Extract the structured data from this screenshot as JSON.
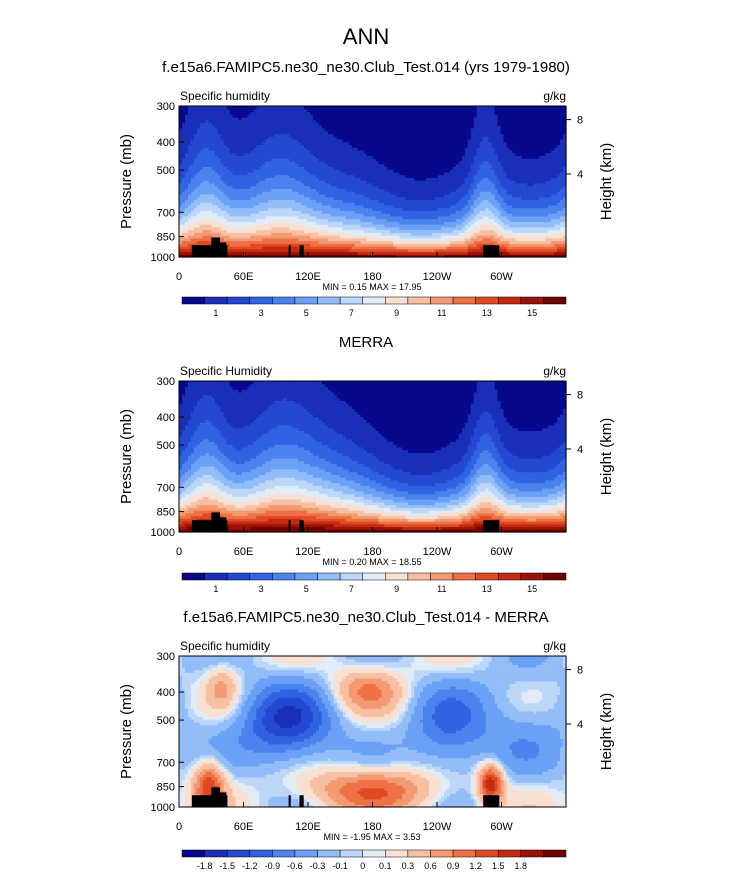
{
  "page_title": "ANN",
  "chart_data": [
    {
      "type": "heatmap",
      "title": "f.e15a6.FAMIPC5.ne30_ne30.Club_Test.014 (yrs 1979-1980)",
      "left_string": "Specific humidity",
      "right_string": "g/kg",
      "ylabel": "Pressure (mb)",
      "ylabel_right": "Height (km)",
      "x_ticks": [
        "0",
        "60E",
        "120E",
        "180",
        "120W",
        "60W"
      ],
      "y_ticks": [
        "300",
        "400",
        "500",
        "700",
        "850",
        "1000"
      ],
      "y_right_ticks": [
        "8",
        "4"
      ],
      "y_scale": "log",
      "ylim": [
        1000,
        300
      ],
      "min_label": "MIN =   0.15  MAX =  17.95",
      "min": 0.15,
      "max": 17.95,
      "colorbar_labels": [
        "1",
        "3",
        "5",
        "7",
        "9",
        "11",
        "13",
        "15"
      ],
      "colorbar_levels": [
        0,
        1,
        2,
        3,
        4,
        5,
        6,
        7,
        8,
        9,
        10,
        11,
        12,
        13,
        14,
        15,
        16
      ]
    },
    {
      "type": "heatmap",
      "title": "MERRA",
      "left_string": "Specific Humidity",
      "right_string": "g/kg",
      "ylabel": "Pressure (mb)",
      "ylabel_right": "Height (km)",
      "x_ticks": [
        "0",
        "60E",
        "120E",
        "180",
        "120W",
        "60W"
      ],
      "y_ticks": [
        "300",
        "400",
        "500",
        "700",
        "850",
        "1000"
      ],
      "y_right_ticks": [
        "8",
        "4"
      ],
      "y_scale": "log",
      "ylim": [
        1000,
        300
      ],
      "min_label": "MIN =   0.20  MAX =  18.55",
      "min": 0.2,
      "max": 18.55,
      "colorbar_labels": [
        "1",
        "3",
        "5",
        "7",
        "9",
        "11",
        "13",
        "15"
      ],
      "colorbar_levels": [
        0,
        1,
        2,
        3,
        4,
        5,
        6,
        7,
        8,
        9,
        10,
        11,
        12,
        13,
        14,
        15,
        16
      ]
    },
    {
      "type": "heatmap",
      "title": "f.e15a6.FAMIPC5.ne30_ne30.Club_Test.014 - MERRA",
      "left_string": "Specific humidity",
      "right_string": "g/kg",
      "ylabel": "Pressure (mb)",
      "ylabel_right": "Height (km)",
      "x_ticks": [
        "0",
        "60E",
        "120E",
        "180",
        "120W",
        "60W"
      ],
      "y_ticks": [
        "300",
        "400",
        "500",
        "700",
        "850",
        "1000"
      ],
      "y_right_ticks": [
        "8",
        "4"
      ],
      "y_scale": "log",
      "ylim": [
        1000,
        300
      ],
      "min_label": "MIN =  -1.95  MAX =   3.53",
      "min": -1.95,
      "max": 3.53,
      "colorbar_labels": [
        "-1.8",
        "-1.5",
        "-1.2",
        "-0.9",
        "-0.6",
        "-0.3",
        "-0.1",
        "0",
        "0.1",
        "0.3",
        "0.6",
        "0.9",
        "1.2",
        "1.5",
        "1.8"
      ],
      "colorbar_levels": [
        -2.1,
        -1.8,
        -1.5,
        -1.2,
        -0.9,
        -0.6,
        -0.3,
        -0.1,
        0,
        0.1,
        0.3,
        0.6,
        0.9,
        1.2,
        1.5,
        1.8,
        2.1
      ]
    }
  ],
  "colors": {
    "palette": [
      "#08088c",
      "#1a2fb8",
      "#2448d2",
      "#2f63e2",
      "#4a82ee",
      "#6aa0f5",
      "#92bdf8",
      "#bcd7f8",
      "#e2ecf7",
      "#f8e0d2",
      "#f8c0a2",
      "#f49a72",
      "#ee7045",
      "#e04a22",
      "#c42a10",
      "#9a1206",
      "#6e0400"
    ],
    "topography": "#000000"
  }
}
